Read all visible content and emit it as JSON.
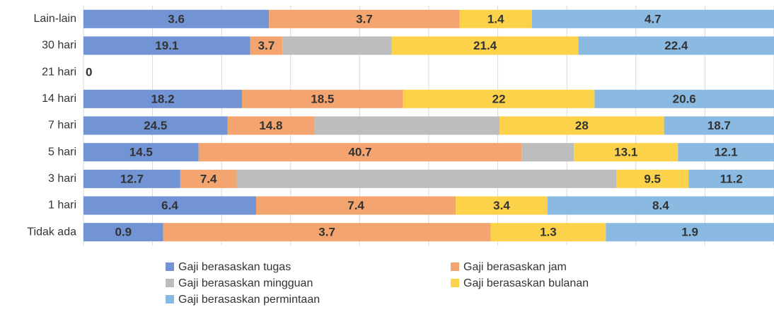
{
  "chart_data": {
    "type": "stacked_percent_bar",
    "categories": [
      "Lain-lain",
      "30 hari",
      "21 hari",
      "14 hari",
      "7 hari",
      "5 hari",
      "3 hari",
      "1 hari",
      "Tidak ada"
    ],
    "series": [
      {
        "name": "Gaji berasaskan tugas",
        "color": "#7294d4",
        "data_labels": true,
        "values": [
          3.6,
          19.1,
          0,
          18.2,
          24.5,
          14.5,
          12.7,
          6.4,
          0.9
        ]
      },
      {
        "name": "Gaji berasaskan jam",
        "color": "#f4a46f",
        "data_labels": true,
        "values": [
          3.7,
          3.7,
          null,
          18.5,
          14.8,
          40.7,
          7.4,
          7.4,
          3.7
        ]
      },
      {
        "name": "Gaji berasaskan mingguan",
        "color": "#bdbdbd",
        "data_labels": false,
        "values": [
          null,
          12.5,
          null,
          null,
          31.5,
          6.6,
          49.8,
          null,
          null
        ]
      },
      {
        "name": "Gaji berasaskan bulanan",
        "color": "#fdd24b",
        "data_labels": true,
        "values": [
          1.4,
          21.4,
          null,
          22,
          28,
          13.1,
          9.5,
          3.4,
          1.3
        ]
      },
      {
        "name": "Gaji berasaskan permintaan",
        "color": "#8ab9e2",
        "data_labels": true,
        "values": [
          4.7,
          22.4,
          null,
          20.6,
          18.7,
          12.1,
          11.2,
          8.4,
          1.9
        ]
      }
    ],
    "xlim": [
      0,
      100
    ],
    "xticks": [
      0,
      10,
      20,
      30,
      40,
      50,
      60,
      70,
      80,
      90,
      100
    ],
    "grid": true
  }
}
